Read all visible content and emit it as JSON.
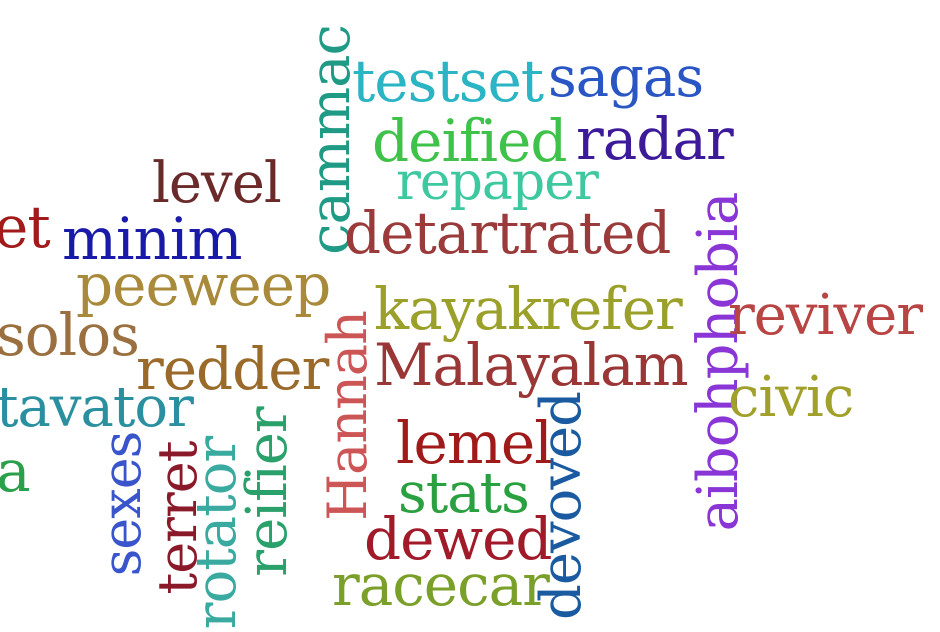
{
  "words": [
    {
      "id": "testset",
      "text": "testset",
      "color": "#2ab4c4"
    },
    {
      "id": "sagas",
      "text": "sagas",
      "color": "#2a56c4"
    },
    {
      "id": "deified",
      "text": "deified",
      "color": "#3ec24a"
    },
    {
      "id": "radar",
      "text": "radar",
      "color": "#3d1a9a"
    },
    {
      "id": "repaper",
      "text": "repaper",
      "color": "#3ec8a0"
    },
    {
      "id": "level",
      "text": "level",
      "color": "#6b2a2a"
    },
    {
      "id": "cammac",
      "text": "cammac",
      "color": "#1f9a85"
    },
    {
      "id": "et",
      "text": "et",
      "color": "#a31a1a"
    },
    {
      "id": "minim",
      "text": "minim",
      "color": "#1a1aa8"
    },
    {
      "id": "detartrated",
      "text": "detartrated",
      "color": "#9a3a3a"
    },
    {
      "id": "aibohphobia",
      "text": "aibohphobia",
      "color": "#8a35d6"
    },
    {
      "id": "peeweep",
      "text": "peeweep",
      "color": "#a88a3a"
    },
    {
      "id": "kayakrefer",
      "text": "kayakrefer",
      "color": "#9aa02a"
    },
    {
      "id": "reviver",
      "text": "reviver",
      "color": "#b84444"
    },
    {
      "id": "solos",
      "text": "solos",
      "color": "#9a7040"
    },
    {
      "id": "hannah",
      "text": "Hannah",
      "color": "#cc5555"
    },
    {
      "id": "redder",
      "text": "redder",
      "color": "#9a6a2a"
    },
    {
      "id": "malayalam",
      "text": "Malayalam",
      "color": "#9a3636"
    },
    {
      "id": "civic",
      "text": "civic",
      "color": "#a0a02a"
    },
    {
      "id": "tavator",
      "text": "tavator",
      "color": "#2a90a0"
    },
    {
      "id": "reifier",
      "text": "reifier",
      "color": "#2aa06a"
    },
    {
      "id": "lemel",
      "text": "lemel",
      "color": "#a01a1a"
    },
    {
      "id": "devoved",
      "text": "devoved",
      "color": "#1a5aa0"
    },
    {
      "id": "a",
      "text": "a",
      "color": "#2aa04a"
    },
    {
      "id": "sexes",
      "text": "sexes",
      "color": "#3a55cc"
    },
    {
      "id": "terret",
      "text": "terret",
      "color": "#8a1a2a"
    },
    {
      "id": "rotator",
      "text": "rotator",
      "color": "#3aaaa0"
    },
    {
      "id": "stats",
      "text": "stats",
      "color": "#2aa040"
    },
    {
      "id": "dewed",
      "text": "dewed",
      "color": "#a01a2a"
    },
    {
      "id": "racecar",
      "text": "racecar",
      "color": "#7aa02a"
    }
  ]
}
